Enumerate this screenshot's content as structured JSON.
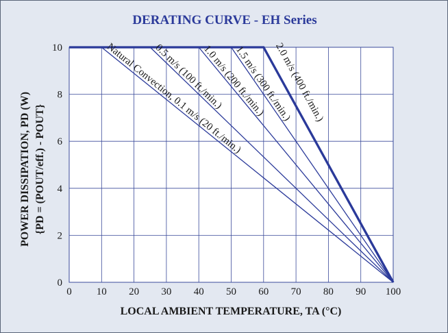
{
  "chart_data": {
    "type": "line",
    "title": "DERATING CURVE - EH Series",
    "xlabel": "LOCAL AMBIENT TEMPERATURE, TA (°C)",
    "ylabel_line1": "POWER DISSIPATION, PD (W)",
    "ylabel_line2": "{PD = (POUT/eff.) - POUT}",
    "xlim": [
      0,
      100
    ],
    "ylim": [
      0,
      10
    ],
    "x_ticks": [
      0,
      10,
      20,
      30,
      40,
      50,
      60,
      70,
      80,
      90,
      100
    ],
    "y_ticks": [
      0,
      2,
      4,
      6,
      8,
      10
    ],
    "grid": true,
    "series": [
      {
        "name": "Natural Convection, 0.1 m/s (20 ft./min.)",
        "x": [
          0,
          10,
          100
        ],
        "y": [
          10,
          10,
          0
        ]
      },
      {
        "name": "0.5 m/s (100 ft./min.)",
        "x": [
          0,
          25,
          100
        ],
        "y": [
          10,
          10,
          0
        ]
      },
      {
        "name": "1.0 m/s (200 ft./min.)",
        "x": [
          0,
          40,
          100
        ],
        "y": [
          10,
          10,
          0
        ]
      },
      {
        "name": "1.5 m/s (300 ft./min.)",
        "x": [
          0,
          50,
          100
        ],
        "y": [
          10,
          10,
          0
        ]
      },
      {
        "name": "2.0 m/s (400 ft./min.)",
        "x": [
          0,
          60,
          100
        ],
        "y": [
          10,
          10,
          0
        ]
      }
    ]
  },
  "colors": {
    "background": "#e3e8f1",
    "plot": "#ffffff",
    "curve": "#2b3a9a",
    "title": "#2b3a9a",
    "text": "#1a1a1a",
    "grid": "#3a4a9a"
  }
}
